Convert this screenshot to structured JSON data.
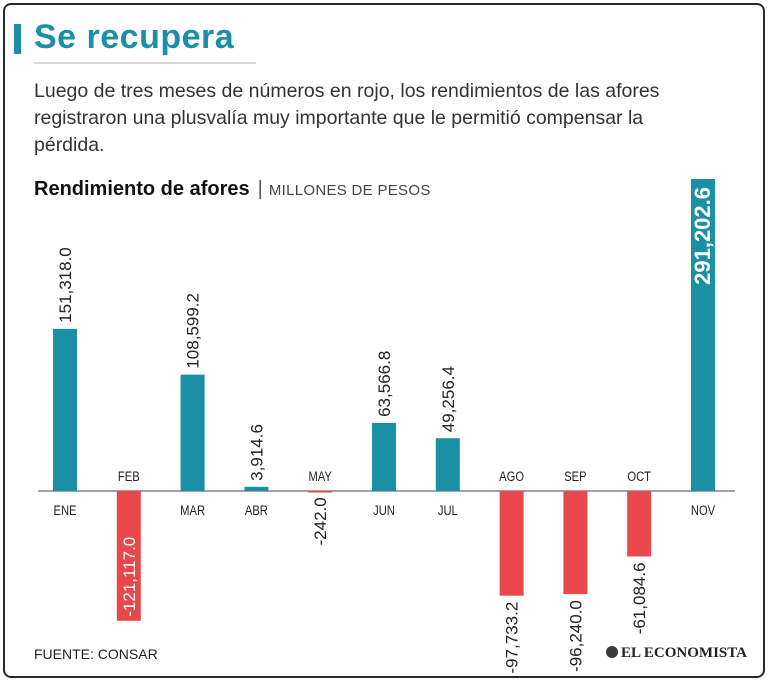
{
  "header": {
    "title": "Se recupera",
    "intro": "Luego de tres meses de números en rojo, los rendimientos de las afores registraron una plusvalía muy importante que le permitió compensar la pérdida."
  },
  "colors": {
    "positive": "#1a8fa6",
    "negative": "#e8474b",
    "accent": "#1a8fa6",
    "axis": "#444444"
  },
  "chart_data": {
    "type": "bar",
    "title": "Rendimiento de afores",
    "subtitle": "MILLONES DE PESOS",
    "categories": [
      "ENE",
      "FEB",
      "MAR",
      "ABR",
      "MAY",
      "JUN",
      "JUL",
      "AGO",
      "SEP",
      "OCT",
      "NOV"
    ],
    "values": [
      151318.0,
      -121117.0,
      108599.2,
      3914.6,
      -242.0,
      63566.8,
      49256.4,
      -97733.2,
      -96240.0,
      -61084.6,
      291202.6
    ],
    "value_labels": [
      "151,318.0",
      "-121,117.0",
      "108,599.2",
      "3,914.6",
      "-242.0",
      "63,566.8",
      "49,256.4",
      "-97,733.2",
      "-96,240.0",
      "-61,084.6",
      "291,202.6"
    ],
    "xlabel": "",
    "ylabel": "Millones de pesos",
    "ylim": [
      -125000,
      295000
    ],
    "grid": false
  },
  "footer": {
    "source": "FUENTE: CONSAR",
    "brand": "EL ECONOMISTA"
  }
}
